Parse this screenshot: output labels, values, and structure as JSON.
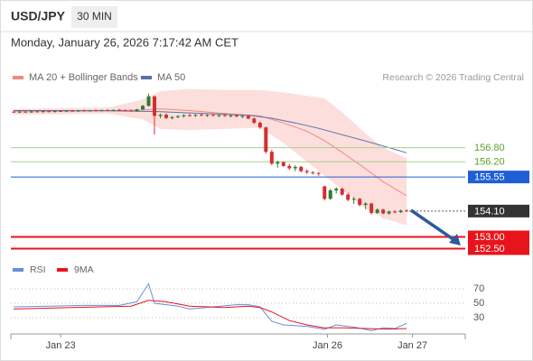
{
  "chart_data": [
    {
      "type": "candlestick",
      "title": "USD/JPY",
      "interval": "30 MIN",
      "subtitle": "Monday, January 26, 2026 7:17:42 AM CET",
      "source": "Research © 2026 Trading Central",
      "up_color": "#2e7d32",
      "down_color": "#d32f2f",
      "xlim": [
        -0.5,
        77
      ],
      "ylim": [
        152.25,
        159.55
      ],
      "x": [
        0,
        1,
        2,
        3,
        4,
        5,
        6,
        7,
        8,
        9,
        10,
        11,
        12,
        13,
        14,
        15,
        16,
        17,
        18,
        19,
        20,
        21,
        22,
        23,
        24,
        25,
        26,
        27,
        28,
        29,
        30,
        31,
        32,
        33,
        34,
        35,
        36,
        37,
        38,
        39,
        40,
        41,
        42,
        43,
        44,
        45,
        46,
        47,
        48,
        49,
        50,
        51,
        52,
        53,
        54,
        55,
        56,
        57,
        58,
        59,
        60,
        61,
        62,
        63,
        64,
        65,
        66,
        67
      ],
      "open": [
        158.33,
        158.3,
        158.33,
        158.31,
        158.34,
        158.32,
        158.35,
        158.33,
        158.36,
        158.34,
        158.37,
        158.35,
        158.38,
        158.36,
        158.39,
        158.37,
        158.4,
        158.38,
        158.41,
        158.39,
        158.38,
        158.36,
        158.43,
        158.58,
        158.98,
        158.15,
        158.2,
        158.06,
        158.1,
        158.14,
        158.18,
        158.16,
        158.2,
        158.17,
        158.19,
        158.16,
        158.18,
        158.14,
        158.17,
        158.12,
        158.15,
        158.04,
        157.86,
        157.66,
        156.62,
        156.12,
        156.18,
        156.02,
        155.92,
        155.98,
        155.8,
        155.75,
        155.72,
        155.15,
        154.62,
        154.98,
        155.05,
        154.8,
        154.58,
        154.62,
        154.36,
        154.42,
        154.02,
        154.16,
        154.0,
        154.08,
        154.05,
        154.12
      ],
      "high": [
        158.38,
        158.36,
        158.37,
        158.36,
        158.38,
        158.37,
        158.39,
        158.37,
        158.4,
        158.39,
        158.41,
        158.4,
        158.42,
        158.4,
        158.43,
        158.41,
        158.44,
        158.42,
        158.45,
        158.43,
        158.42,
        158.45,
        158.62,
        159.1,
        159.02,
        158.25,
        158.26,
        158.14,
        158.18,
        158.22,
        158.24,
        158.22,
        158.26,
        158.22,
        158.25,
        158.21,
        158.24,
        158.2,
        158.22,
        158.18,
        158.19,
        158.08,
        157.92,
        157.7,
        156.7,
        156.25,
        156.22,
        156.1,
        156.05,
        156.02,
        155.88,
        155.8,
        155.76,
        155.18,
        155.05,
        155.12,
        155.1,
        154.88,
        154.7,
        154.66,
        154.48,
        154.45,
        154.22,
        154.2,
        154.12,
        154.14,
        154.16,
        154.18
      ],
      "low": [
        158.28,
        158.27,
        158.29,
        158.28,
        158.3,
        158.29,
        158.31,
        158.29,
        158.32,
        158.31,
        158.33,
        158.32,
        158.34,
        158.33,
        158.35,
        158.34,
        158.36,
        158.34,
        158.37,
        158.35,
        158.33,
        158.32,
        158.4,
        158.55,
        157.35,
        158.05,
        158.02,
        158.0,
        158.05,
        158.08,
        158.12,
        158.1,
        158.14,
        158.11,
        158.14,
        158.1,
        158.12,
        158.08,
        158.1,
        158.06,
        158.0,
        157.8,
        157.6,
        156.55,
        156.05,
        155.95,
        155.98,
        155.85,
        155.8,
        155.75,
        155.68,
        155.65,
        155.6,
        154.55,
        154.58,
        154.85,
        154.75,
        154.52,
        154.4,
        154.3,
        154.18,
        153.95,
        153.98,
        153.96,
        153.94,
        154.0,
        154.02,
        154.06
      ],
      "close": [
        158.3,
        158.33,
        158.31,
        158.34,
        158.32,
        158.35,
        158.33,
        158.36,
        158.34,
        158.37,
        158.35,
        158.38,
        158.36,
        158.39,
        158.37,
        158.4,
        158.38,
        158.41,
        158.39,
        158.38,
        158.36,
        158.43,
        158.58,
        158.98,
        158.15,
        158.2,
        158.06,
        158.1,
        158.14,
        158.18,
        158.16,
        158.2,
        158.17,
        158.19,
        158.16,
        158.18,
        158.14,
        158.17,
        158.12,
        158.15,
        158.04,
        157.86,
        157.66,
        156.62,
        156.12,
        156.18,
        156.02,
        155.92,
        155.98,
        155.8,
        155.75,
        155.72,
        155.7,
        154.62,
        154.98,
        155.05,
        154.8,
        154.58,
        154.62,
        154.36,
        154.42,
        154.02,
        154.16,
        154.0,
        154.08,
        154.05,
        154.12,
        154.1
      ],
      "series": [
        {
          "name": "MA 20 + Bollinger Bands",
          "color": "#f08a80",
          "band_color": "#fbd3d0",
          "x": [
            0,
            8,
            16,
            22,
            25,
            30,
            36,
            42,
            46,
            50,
            53,
            56,
            60,
            63,
            67
          ],
          "values": [
            158.35,
            158.36,
            158.37,
            158.4,
            158.45,
            158.38,
            158.25,
            158.15,
            157.85,
            157.5,
            157.1,
            156.6,
            155.9,
            155.35,
            154.75
          ],
          "upper": [
            158.45,
            158.48,
            158.5,
            158.85,
            159.2,
            159.3,
            159.25,
            159.25,
            159.15,
            159.0,
            158.9,
            158.3,
            157.4,
            156.8,
            156.35
          ],
          "lower": [
            158.2,
            158.22,
            158.25,
            158.0,
            157.6,
            157.55,
            157.6,
            157.65,
            157.0,
            156.2,
            155.6,
            155.0,
            154.2,
            153.8,
            153.5
          ]
        },
        {
          "name": "MA 50",
          "color": "#5b6fa8",
          "x": [
            0,
            8,
            16,
            24,
            32,
            40,
            44,
            48,
            52,
            56,
            60,
            64,
            67
          ],
          "values": [
            158.38,
            158.38,
            158.37,
            158.34,
            158.26,
            158.18,
            158.05,
            157.85,
            157.62,
            157.35,
            157.08,
            156.8,
            156.58
          ]
        }
      ],
      "levels": [
        {
          "value": 156.8,
          "label": "156.80",
          "color": "#5a9e2a",
          "style": "text"
        },
        {
          "value": 156.2,
          "label": "156.20",
          "color": "#5a9e2a",
          "style": "text"
        },
        {
          "value": 155.55,
          "label": "155.55",
          "color": "#1f5fd6",
          "style": "box"
        },
        {
          "value": 154.1,
          "label": "154.10",
          "color": "#333333",
          "style": "dotted"
        },
        {
          "value": 153,
          "label": "153.00",
          "color": "#e8141c",
          "style": "thick"
        },
        {
          "value": 152.5,
          "label": "152.50",
          "color": "#e8141c",
          "style": "thick"
        }
      ]
    },
    {
      "type": "line",
      "xlim": [
        -0.5,
        77
      ],
      "ylim": [
        7.5,
        80
      ],
      "yticks": [
        70,
        50,
        30
      ],
      "grid": true,
      "xticks": [
        {
          "value": 8,
          "label": "Jan 23"
        },
        {
          "value": 53.5,
          "label": "Jan 26"
        },
        {
          "value": 68,
          "label": "Jan 27"
        }
      ],
      "series": [
        {
          "name": "RSI",
          "color": "#6a8fd8",
          "x": [
            0,
            6,
            12,
            18,
            21,
            23,
            24,
            28,
            30,
            34,
            38,
            40,
            42,
            44,
            46,
            50,
            53,
            55,
            58,
            61,
            63,
            65,
            67
          ],
          "values": [
            45,
            46,
            47,
            47,
            52,
            77,
            50,
            46,
            42,
            45,
            48,
            48,
            45,
            25,
            20,
            18,
            14,
            20,
            17,
            12,
            16,
            15,
            22
          ]
        },
        {
          "name": "9MA",
          "color": "#e8141c",
          "x": [
            0,
            10,
            20,
            23,
            26,
            30,
            36,
            40,
            42,
            44,
            47,
            50,
            53,
            56,
            60,
            64,
            67
          ],
          "values": [
            42,
            44,
            46,
            54,
            52,
            46,
            44,
            46,
            44,
            38,
            26,
            20,
            16,
            16,
            15,
            14,
            15
          ]
        }
      ]
    }
  ]
}
